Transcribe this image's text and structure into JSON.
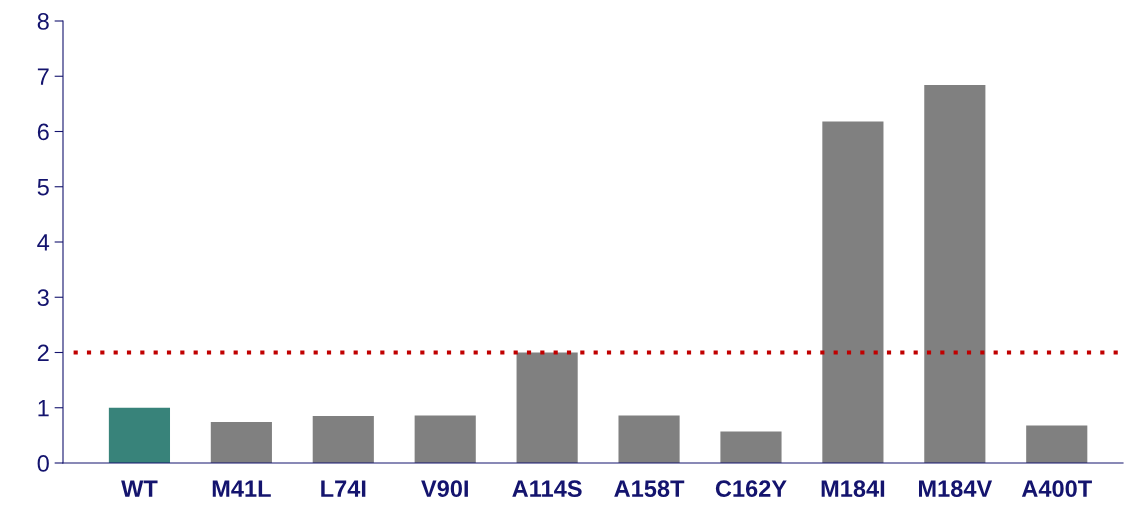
{
  "chart_data": {
    "type": "bar",
    "categories": [
      "WT",
      "M41L",
      "L74I",
      "V90I",
      "A114S",
      "A158T",
      "C162Y",
      "M184I",
      "M184V",
      "A400T"
    ],
    "values": [
      1.0,
      0.74,
      0.85,
      0.86,
      2.0,
      0.86,
      0.57,
      6.18,
      6.84,
      0.68
    ],
    "colors": [
      "#38837a",
      "#808080",
      "#808080",
      "#808080",
      "#808080",
      "#808080",
      "#808080",
      "#808080",
      "#808080",
      "#808080"
    ],
    "ylim": [
      0,
      8
    ],
    "yticks": [
      0,
      1,
      2,
      3,
      4,
      5,
      6,
      7,
      8
    ],
    "ref_lines": [
      {
        "axis": "y",
        "value": 2,
        "color": "#c00000",
        "line_style": "dotted"
      }
    ],
    "grid": false,
    "legend": false
  }
}
